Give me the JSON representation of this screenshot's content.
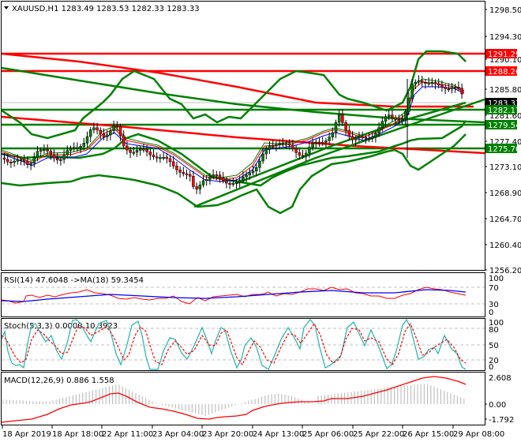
{
  "header": {
    "symbol_line": "XAUUSD,H1  1283.49 1283.53 1282.33 1283.33",
    "symbol": "XAUUSD",
    "timeframe": "H1",
    "open": "1283.49",
    "high": "1283.53",
    "low": "1282.33",
    "close": "1283.33"
  },
  "price_axis": {
    "ticks": [
      "1298.50",
      "1294.30",
      "1290.10",
      "1285.80",
      "1281.60",
      "1277.40",
      "1273.10",
      "1268.90",
      "1264.70",
      "1260.40",
      "1256.20"
    ],
    "tags": [
      {
        "value": "1291.29",
        "color": "#ff0000"
      },
      {
        "value": "1288.26",
        "color": "#ff0000"
      },
      {
        "value": "1283.33",
        "color": "#000000"
      },
      {
        "value": "1282.17",
        "color": "#008000"
      },
      {
        "value": "1279.54",
        "color": "#008000"
      },
      {
        "value": "1275.76",
        "color": "#008000"
      }
    ]
  },
  "rsi": {
    "label": "RSI(14) 47.6048  ->MA(18) 59.3454",
    "levels": [
      "100",
      "70",
      "30",
      "0"
    ]
  },
  "stoch": {
    "label": "Stoch(5,3,3) 0.0000 10.3923",
    "levels": [
      "100",
      "80",
      "50",
      "20",
      "0"
    ]
  },
  "macd": {
    "label": "MACD(12,26,9) 0.886 1.558",
    "levels": [
      "2.608",
      "0.00",
      "-1.792"
    ]
  },
  "time_axis": {
    "labels": [
      "18 Apr 2019",
      "18 Apr 18:00",
      "22 Apr 11:00",
      "23 Apr 04:00",
      "23 Apr 20:00",
      "24 Apr 13:00",
      "25 Apr 06:00",
      "25 Apr 22:00",
      "26 Apr 15:00",
      "29 Apr 08:00"
    ]
  },
  "chart_data": [
    {
      "type": "candlestick",
      "title": "XAUUSD,H1",
      "ylim": [
        1256.2,
        1298.5
      ],
      "yticks": [
        1298.5,
        1294.3,
        1290.1,
        1285.8,
        1281.6,
        1277.4,
        1273.1,
        1268.9,
        1264.7,
        1260.4,
        1256.2
      ],
      "xticks": [
        "18 Apr 2019",
        "18 Apr 18:00",
        "22 Apr 11:00",
        "23 Apr 04:00",
        "23 Apr 20:00",
        "24 Apr 13:00",
        "25 Apr 06:00",
        "25 Apr 22:00",
        "26 Apr 15:00",
        "29 Apr 08:00"
      ],
      "last_ohlc": {
        "open": 1283.49,
        "high": 1283.53,
        "low": 1282.33,
        "close": 1283.33
      },
      "horizontal_levels": [
        {
          "value": 1291.29,
          "color": "red"
        },
        {
          "value": 1288.26,
          "color": "red"
        },
        {
          "value": 1282.17,
          "color": "green"
        },
        {
          "value": 1279.54,
          "color": "green"
        },
        {
          "value": 1275.76,
          "color": "green"
        }
      ],
      "approx_close_path": [
        {
          "x": "18 Apr 2019",
          "y": 1273.5
        },
        {
          "x": "18 Apr 18:00",
          "y": 1276.5
        },
        {
          "x": "22 Apr 11:00",
          "y": 1279.0
        },
        {
          "x": "23 Apr 04:00",
          "y": 1274.0
        },
        {
          "x": "23 Apr 20:00",
          "y": 1270.0
        },
        {
          "x": "24 Apr 13:00",
          "y": 1275.5
        },
        {
          "x": "25 Apr 06:00",
          "y": 1277.5
        },
        {
          "x": "25 Apr 22:00",
          "y": 1280.0
        },
        {
          "x": "26 Apr 15:00",
          "y": 1286.0
        },
        {
          "x": "29 Apr 08:00",
          "y": 1283.33
        }
      ],
      "overlays": [
        "Bollinger Bands (green)",
        "Moving averages (red, blue, green)",
        "Trend lines (red, green)"
      ]
    },
    {
      "type": "line",
      "title": "RSI(14) 47.6048 ->MA(18) 59.3454",
      "ylim": [
        0,
        100
      ],
      "levels": [
        70,
        30
      ],
      "series": [
        {
          "name": "RSI(14)",
          "color": "red",
          "last": 47.6048
        },
        {
          "name": "MA(18)",
          "color": "blue",
          "last": 59.3454
        }
      ]
    },
    {
      "type": "line",
      "title": "Stoch(5,3,3) 0.0000 10.3923",
      "ylim": [
        0,
        100
      ],
      "levels": [
        80,
        50,
        20
      ],
      "series": [
        {
          "name": "%K",
          "color": "lightseagreen",
          "last": 0.0
        },
        {
          "name": "%D",
          "color": "red",
          "style": "dashed",
          "last": 10.3923
        }
      ]
    },
    {
      "type": "bar",
      "title": "MACD(12,26,9) 0.886 1.558",
      "ylim": [
        -1.792,
        2.608
      ],
      "series": [
        {
          "name": "MACD histogram",
          "color": "silver",
          "last": 0.886
        },
        {
          "name": "Signal",
          "color": "red",
          "last": 1.558
        }
      ]
    }
  ]
}
